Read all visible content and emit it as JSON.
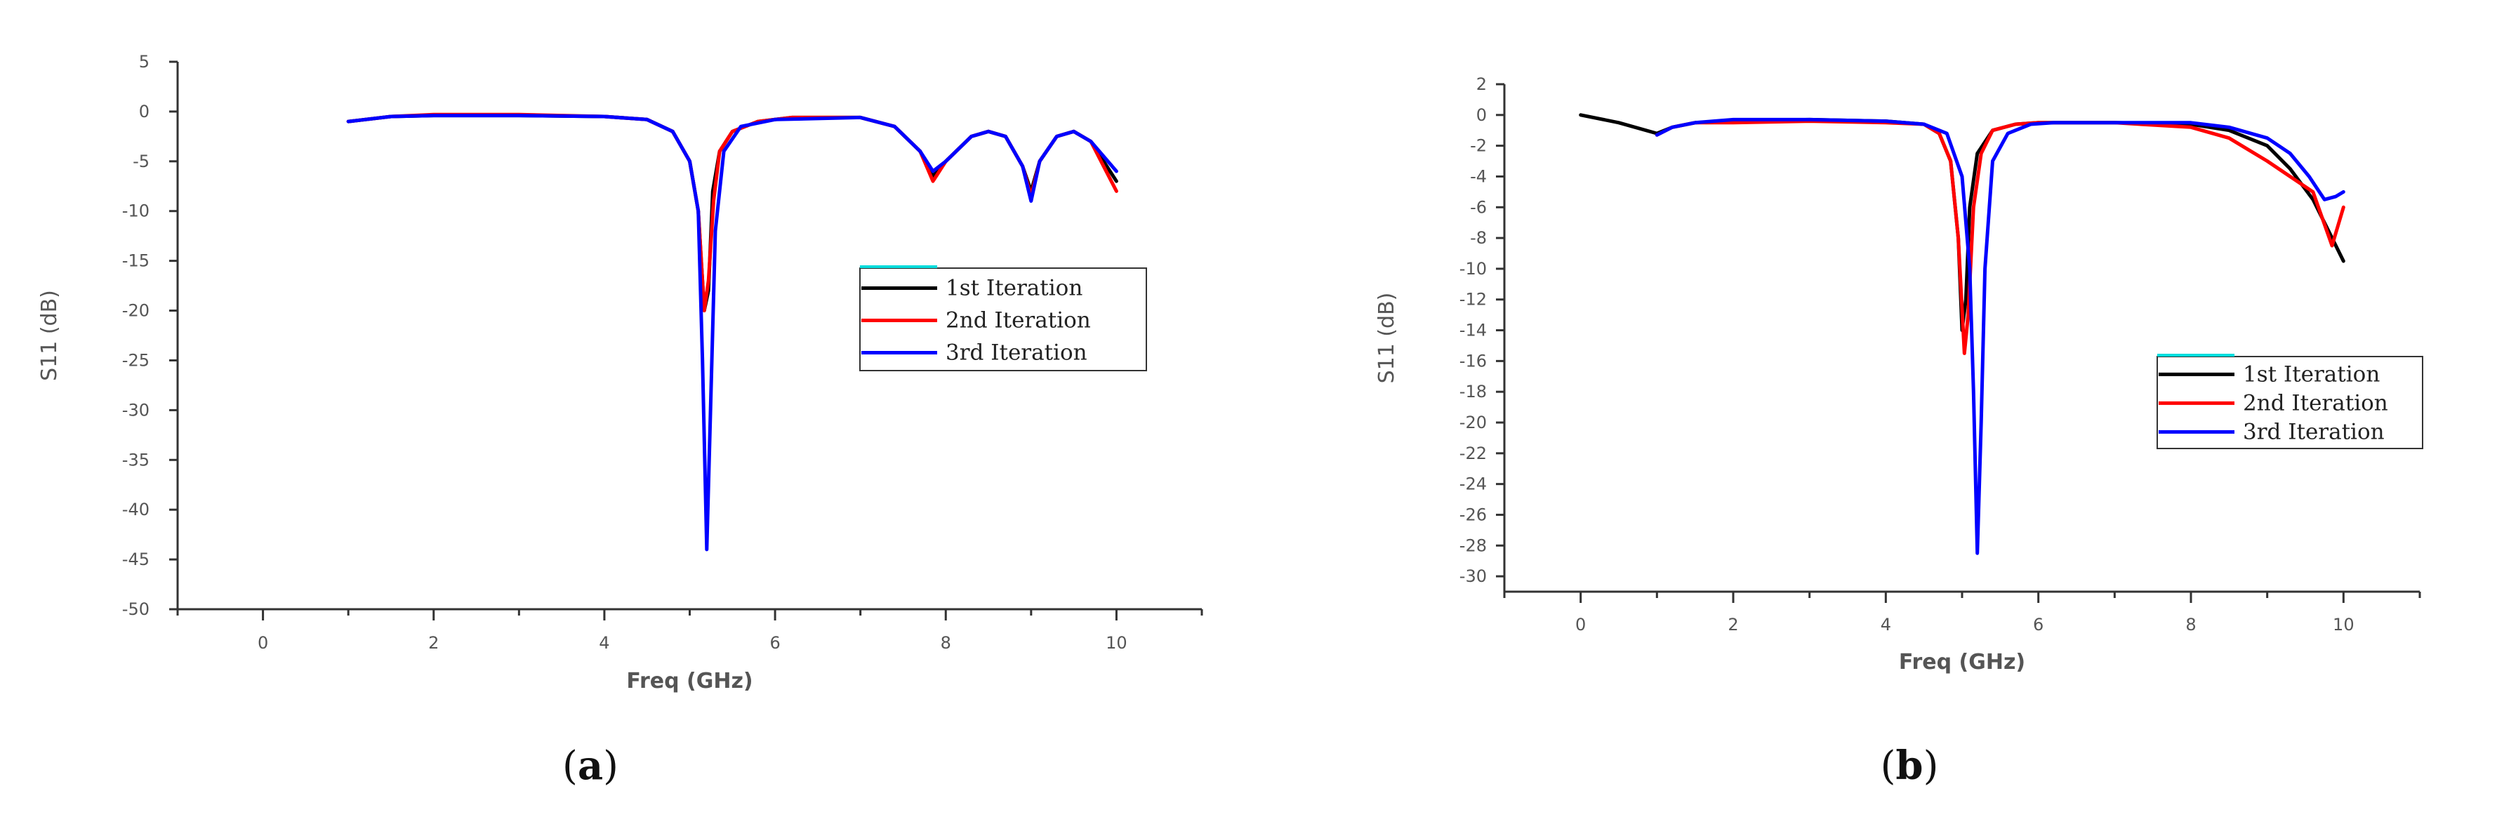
{
  "chart_data": [
    {
      "type": "line",
      "panel_label_open": "(",
      "panel_label_letter": "a",
      "panel_label_close": ")",
      "xlabel": "Freq (GHz)",
      "ylabel": "S11 (dB)",
      "xlim": [
        -1,
        11
      ],
      "ylim": [
        -50,
        5
      ],
      "xticks": [
        0,
        2,
        4,
        6,
        8,
        10
      ],
      "yticks": [
        5,
        0,
        -5,
        -10,
        -15,
        -20,
        -25,
        -30,
        -35,
        -40,
        -45,
        -50
      ],
      "legend_position": "center-right",
      "legend": [
        "1st Iteration",
        "2nd Iteration",
        "3rd  Iteration"
      ],
      "series": [
        {
          "name": "1st Iteration",
          "color": "#000000",
          "x": [
            1,
            1.5,
            2,
            3,
            4,
            4.5,
            4.8,
            5.0,
            5.1,
            5.17,
            5.22,
            5.27,
            5.35,
            5.5,
            5.8,
            6.2,
            7.0,
            7.4,
            7.7,
            7.85,
            8.0,
            8.3,
            8.5,
            8.7,
            8.9,
            9.0,
            9.1,
            9.3,
            9.5,
            9.7,
            10.0
          ],
          "y": [
            -1,
            -0.5,
            -0.4,
            -0.4,
            -0.5,
            -0.8,
            -2,
            -5,
            -10,
            -20,
            -18,
            -8,
            -4,
            -2,
            -1,
            -0.6,
            -0.6,
            -1.5,
            -4,
            -6.5,
            -5,
            -2.5,
            -2,
            -2.5,
            -5.5,
            -8,
            -5,
            -2.5,
            -2,
            -3,
            -7
          ]
        },
        {
          "name": "2nd Iteration",
          "color": "#ff0000",
          "x": [
            1,
            1.5,
            2,
            3,
            4,
            4.5,
            4.8,
            5.0,
            5.1,
            5.17,
            5.22,
            5.28,
            5.35,
            5.5,
            5.8,
            6.2,
            7.0,
            7.4,
            7.7,
            7.85,
            8.0,
            8.3,
            8.5,
            8.7,
            8.9,
            9.0,
            9.1,
            9.3,
            9.5,
            9.7,
            10.0
          ],
          "y": [
            -1,
            -0.5,
            -0.3,
            -0.3,
            -0.5,
            -0.8,
            -2,
            -5,
            -10,
            -20,
            -17,
            -9,
            -4,
            -2,
            -1,
            -0.6,
            -0.6,
            -1.5,
            -4,
            -7,
            -5,
            -2.5,
            -2,
            -2.5,
            -5.5,
            -8.5,
            -5,
            -2.5,
            -2,
            -3,
            -8
          ]
        },
        {
          "name": "3rd  Iteration",
          "color": "#0000ff",
          "x": [
            1,
            1.5,
            2,
            3,
            4,
            4.5,
            4.8,
            5.0,
            5.1,
            5.15,
            5.2,
            5.25,
            5.3,
            5.4,
            5.6,
            6.0,
            7.0,
            7.4,
            7.7,
            7.85,
            8.0,
            8.3,
            8.5,
            8.7,
            8.9,
            9.0,
            9.1,
            9.3,
            9.5,
            9.7,
            10.0
          ],
          "y": [
            -1,
            -0.5,
            -0.4,
            -0.4,
            -0.5,
            -0.8,
            -2,
            -5,
            -10,
            -25,
            -44,
            -28,
            -12,
            -4,
            -1.5,
            -0.8,
            -0.6,
            -1.5,
            -4,
            -6,
            -5,
            -2.5,
            -2,
            -2.5,
            -5.5,
            -9,
            -5,
            -2.5,
            -2,
            -3,
            -6
          ]
        }
      ]
    },
    {
      "type": "line",
      "panel_label_open": "(",
      "panel_label_letter": "b",
      "panel_label_close": ")",
      "xlabel": "Freq (GHz)",
      "ylabel": "S11 (dB)",
      "xlim": [
        -1,
        11
      ],
      "ylim": [
        -31,
        2
      ],
      "xticks": [
        0,
        2,
        4,
        6,
        8,
        10
      ],
      "yticks": [
        2,
        0,
        -2,
        -4,
        -6,
        -8,
        -10,
        -12,
        -14,
        -16,
        -18,
        -20,
        -22,
        -24,
        -26,
        -28,
        -30
      ],
      "legend_position": "lower-right",
      "legend": [
        "1st Iteration",
        "2nd Iteration",
        "3rd Iteration"
      ],
      "series": [
        {
          "name": "1st Iteration",
          "color": "#000000",
          "x": [
            0,
            0.5,
            1.0,
            1.2,
            1.5,
            2,
            3,
            4,
            4.5,
            4.7,
            4.85,
            4.95,
            5.0,
            5.05,
            5.1,
            5.2,
            5.4,
            5.7,
            6.0,
            7.0,
            8.0,
            8.5,
            9.0,
            9.3,
            9.6,
            9.8,
            10.0
          ],
          "y": [
            0,
            -0.5,
            -1.2,
            -0.8,
            -0.5,
            -0.4,
            -0.3,
            -0.4,
            -0.6,
            -1.2,
            -3,
            -8,
            -14,
            -12,
            -6,
            -2.5,
            -1,
            -0.6,
            -0.5,
            -0.5,
            -0.6,
            -1,
            -2,
            -3.5,
            -5.5,
            -7.5,
            -9.5
          ]
        },
        {
          "name": "2nd Iteration",
          "color": "#ff0000",
          "x": [
            1.0,
            1.2,
            1.5,
            2,
            3,
            4,
            4.5,
            4.7,
            4.85,
            4.95,
            5.03,
            5.08,
            5.15,
            5.25,
            5.4,
            5.7,
            6.0,
            7.0,
            8.0,
            8.5,
            9.0,
            9.3,
            9.6,
            9.85,
            10.0
          ],
          "y": [
            -1.3,
            -0.8,
            -0.5,
            -0.5,
            -0.4,
            -0.5,
            -0.6,
            -1.2,
            -3,
            -8,
            -15.5,
            -13,
            -6,
            -2.5,
            -1,
            -0.6,
            -0.5,
            -0.5,
            -0.8,
            -1.5,
            -3,
            -4,
            -5,
            -8.5,
            -6
          ]
        },
        {
          "name": "3rd Iteration",
          "color": "#0000ff",
          "x": [
            1.0,
            1.2,
            1.5,
            2,
            3,
            4,
            4.5,
            4.8,
            5.0,
            5.1,
            5.15,
            5.2,
            5.25,
            5.3,
            5.4,
            5.6,
            5.9,
            6.2,
            7.0,
            8.0,
            8.5,
            9.0,
            9.3,
            9.55,
            9.75,
            9.9,
            10.0
          ],
          "y": [
            -1.3,
            -0.8,
            -0.5,
            -0.3,
            -0.3,
            -0.4,
            -0.6,
            -1.2,
            -4,
            -10,
            -18,
            -28.5,
            -20,
            -10,
            -3,
            -1.2,
            -0.6,
            -0.5,
            -0.5,
            -0.5,
            -0.8,
            -1.5,
            -2.5,
            -4,
            -5.5,
            -5.3,
            -5
          ]
        }
      ]
    }
  ]
}
